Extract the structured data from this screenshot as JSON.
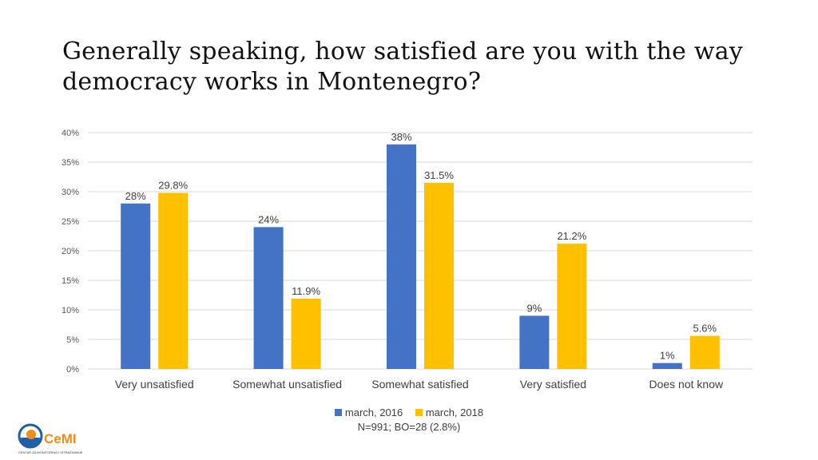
{
  "title": "Generally speaking, how satisfied are you with the way democracy works in Montenegro?",
  "note": "N=991; BO=28 (2.8%)",
  "logo": {
    "icon": "cemi-logo-icon",
    "name": "CeMI",
    "tagline": "CENTAR ZA MONITORING I ISTRAŽIVANJE"
  },
  "colors": {
    "series_2016": "#4472C4",
    "series_2018": "#FFC000",
    "grid": "#D9D9D9"
  },
  "chart_data": {
    "type": "bar",
    "title": "Generally speaking, how satisfied are you with the way democracy works in Montenegro?",
    "categories": [
      "Very unsatisfied",
      "Somewhat unsatisfied",
      "Somewhat satisfied",
      "Very satisfied",
      "Does not know"
    ],
    "series": [
      {
        "name": "march, 2016",
        "values": [
          28,
          24,
          38,
          9,
          1
        ],
        "labels": [
          "28%",
          "24%",
          "38%",
          "9%",
          "1%"
        ],
        "color": "#4472C4"
      },
      {
        "name": "march, 2018",
        "values": [
          29.8,
          11.9,
          31.5,
          21.2,
          5.6
        ],
        "labels": [
          "29.8%",
          "11.9%",
          "31.5%",
          "21.2%",
          "5.6%"
        ],
        "color": "#FFC000"
      }
    ],
    "yticks": [
      "0%",
      "5%",
      "10%",
      "15%",
      "20%",
      "25%",
      "30%",
      "35%",
      "40%"
    ],
    "ylim": [
      0,
      40
    ],
    "xlabel": "",
    "ylabel": "",
    "grid": true,
    "legend_position": "bottom"
  }
}
